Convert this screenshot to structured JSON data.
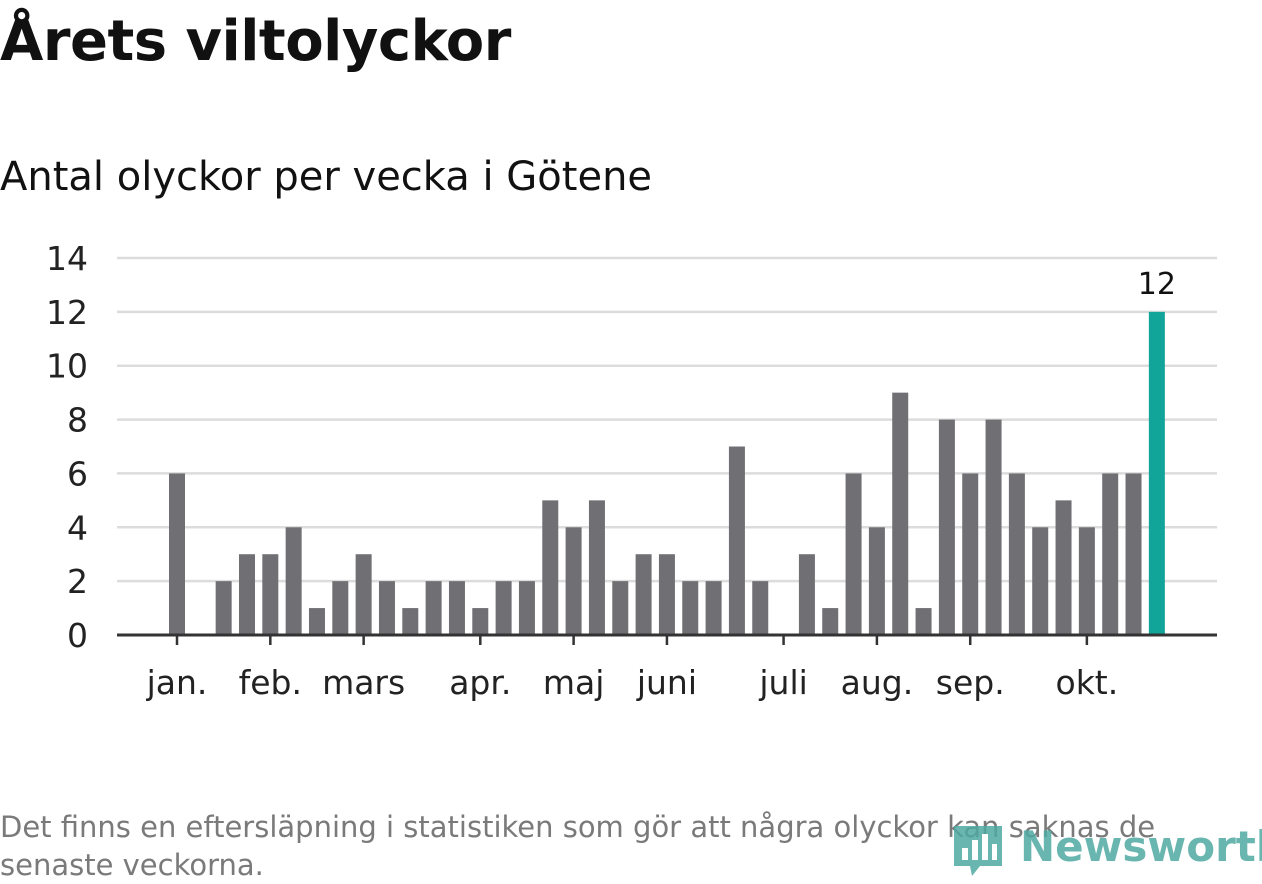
{
  "title": "Årets viltolyckor",
  "subtitle": "Antal olyckor per vecka i Götene",
  "footnote": "Det finns en eftersläpning i statistiken som gör att några olyckor kan saknas de senaste veckorna.",
  "logo_text": "Newsworthy",
  "colors": {
    "bar": "#707074",
    "highlight": "#11a59a",
    "grid": "#dcdcdc",
    "axis": "#333333",
    "logo": "#4fa9a2"
  },
  "chart_data": {
    "type": "bar",
    "title": "Antal olyckor per vecka i Götene",
    "xlabel": "",
    "ylabel": "",
    "ylim": [
      0,
      14
    ],
    "yticks": [
      0,
      2,
      4,
      6,
      8,
      10,
      12,
      14
    ],
    "grid": true,
    "weeks": [
      1,
      2,
      3,
      4,
      5,
      6,
      7,
      8,
      9,
      10,
      11,
      12,
      13,
      14,
      15,
      16,
      17,
      18,
      19,
      20,
      21,
      22,
      23,
      24,
      25,
      26,
      27,
      28,
      29,
      30,
      31,
      32,
      33,
      34,
      35,
      36,
      37,
      38,
      39,
      40,
      41,
      42,
      43
    ],
    "values": [
      6,
      0,
      2,
      3,
      3,
      4,
      1,
      2,
      3,
      2,
      1,
      2,
      2,
      1,
      2,
      2,
      5,
      4,
      5,
      2,
      3,
      3,
      2,
      2,
      7,
      2,
      0,
      3,
      1,
      6,
      4,
      9,
      1,
      8,
      6,
      8,
      6,
      4,
      5,
      4,
      6,
      6,
      12
    ],
    "highlight_index": 42,
    "highlight_label": "12",
    "month_labels": [
      {
        "label": "jan.",
        "index": 0
      },
      {
        "label": "feb.",
        "index": 4
      },
      {
        "label": "mars",
        "index": 8
      },
      {
        "label": "apr.",
        "index": 13
      },
      {
        "label": "maj",
        "index": 17
      },
      {
        "label": "juni",
        "index": 21
      },
      {
        "label": "juli",
        "index": 26
      },
      {
        "label": "aug.",
        "index": 30
      },
      {
        "label": "sep.",
        "index": 34
      },
      {
        "label": "okt.",
        "index": 39
      }
    ]
  }
}
